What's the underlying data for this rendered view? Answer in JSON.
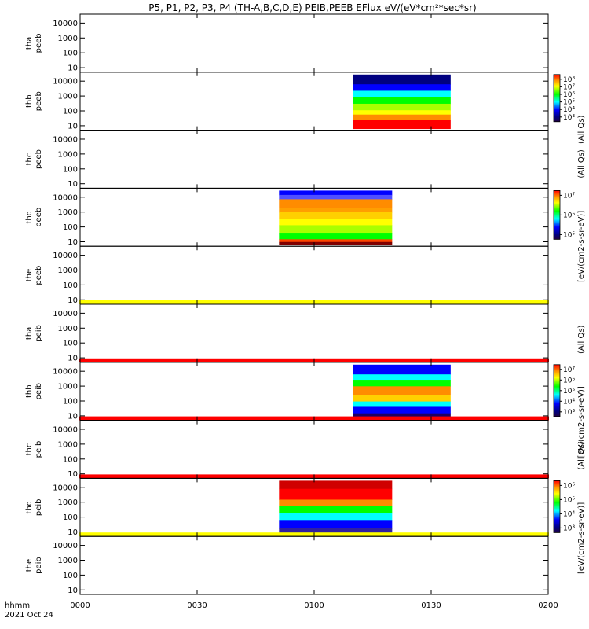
{
  "chart_data": {
    "type": "heatmap",
    "title": "P5, P1, P2, P3, P4 (TH-A,B,C,D,E) PEIB,PEEB EFlux eV/(eV*cm²*sec*sr)",
    "xaxis": {
      "ticks": [
        "0000",
        "0030",
        "0100",
        "0130",
        "0200"
      ],
      "label_line1": "hhmm",
      "label_line2": "2021 Oct 24",
      "range_minutes": [
        0,
        120
      ]
    },
    "yaxis": {
      "scale": "log",
      "ticks": [
        "10",
        "100",
        "1000",
        "10000"
      ],
      "range": [
        5,
        40000
      ]
    },
    "panels": [
      {
        "probe": "tha",
        "species": "peeb",
        "has_data": false,
        "bar": ""
      },
      {
        "probe": "thb",
        "species": "peeb",
        "has_data": true,
        "t_start": 70,
        "t_end": 95,
        "bar": ""
      },
      {
        "probe": "thc",
        "species": "peeb",
        "has_data": false,
        "bar": ""
      },
      {
        "probe": "thd",
        "species": "peeb",
        "has_data": true,
        "t_start": 51,
        "t_end": 80,
        "bar": ""
      },
      {
        "probe": "the",
        "species": "peeb",
        "has_data": false,
        "bar": "yellow"
      },
      {
        "probe": "tha",
        "species": "peib",
        "has_data": false,
        "bar": "red"
      },
      {
        "probe": "thb",
        "species": "peib",
        "has_data": true,
        "t_start": 70,
        "t_end": 95,
        "bar": "red"
      },
      {
        "probe": "thc",
        "species": "peib",
        "has_data": false,
        "bar": "red"
      },
      {
        "probe": "thd",
        "species": "peib",
        "has_data": true,
        "t_start": 51,
        "t_end": 80,
        "bar": "yellow"
      },
      {
        "probe": "the",
        "species": "peib",
        "has_data": false,
        "bar": ""
      }
    ],
    "colorbars": [
      {
        "label": "(All Qs)",
        "label2": "",
        "ticks": [
          "10⁸",
          "10⁷",
          "10⁶",
          "10⁵",
          "10⁴",
          "10³"
        ]
      },
      {
        "label": "[eV/(cm2-s-sr-eV)]",
        "label2": "(All Qs)",
        "ticks": [
          "10⁷",
          "10⁶",
          "10⁵"
        ]
      },
      {
        "label": "[eV/(cm2-s-sr-eV)]",
        "label2": "(All Qs)",
        "ticks": [
          "10⁷",
          "10⁶",
          "10⁵",
          "10⁴",
          "10³"
        ]
      },
      {
        "label": "[eV/(cm2-s-sr-eV)]",
        "label2": "(All Qs)",
        "ticks": [
          "10⁶",
          "10⁵",
          "10⁴",
          "10³"
        ]
      }
    ],
    "colors": {
      "red": "#ff0000",
      "yellow": "#ffff00",
      "orange": "#ff8c00",
      "green": "#00ff00",
      "cyan": "#00ffff",
      "blue": "#0000ff",
      "navy": "#000080"
    }
  }
}
